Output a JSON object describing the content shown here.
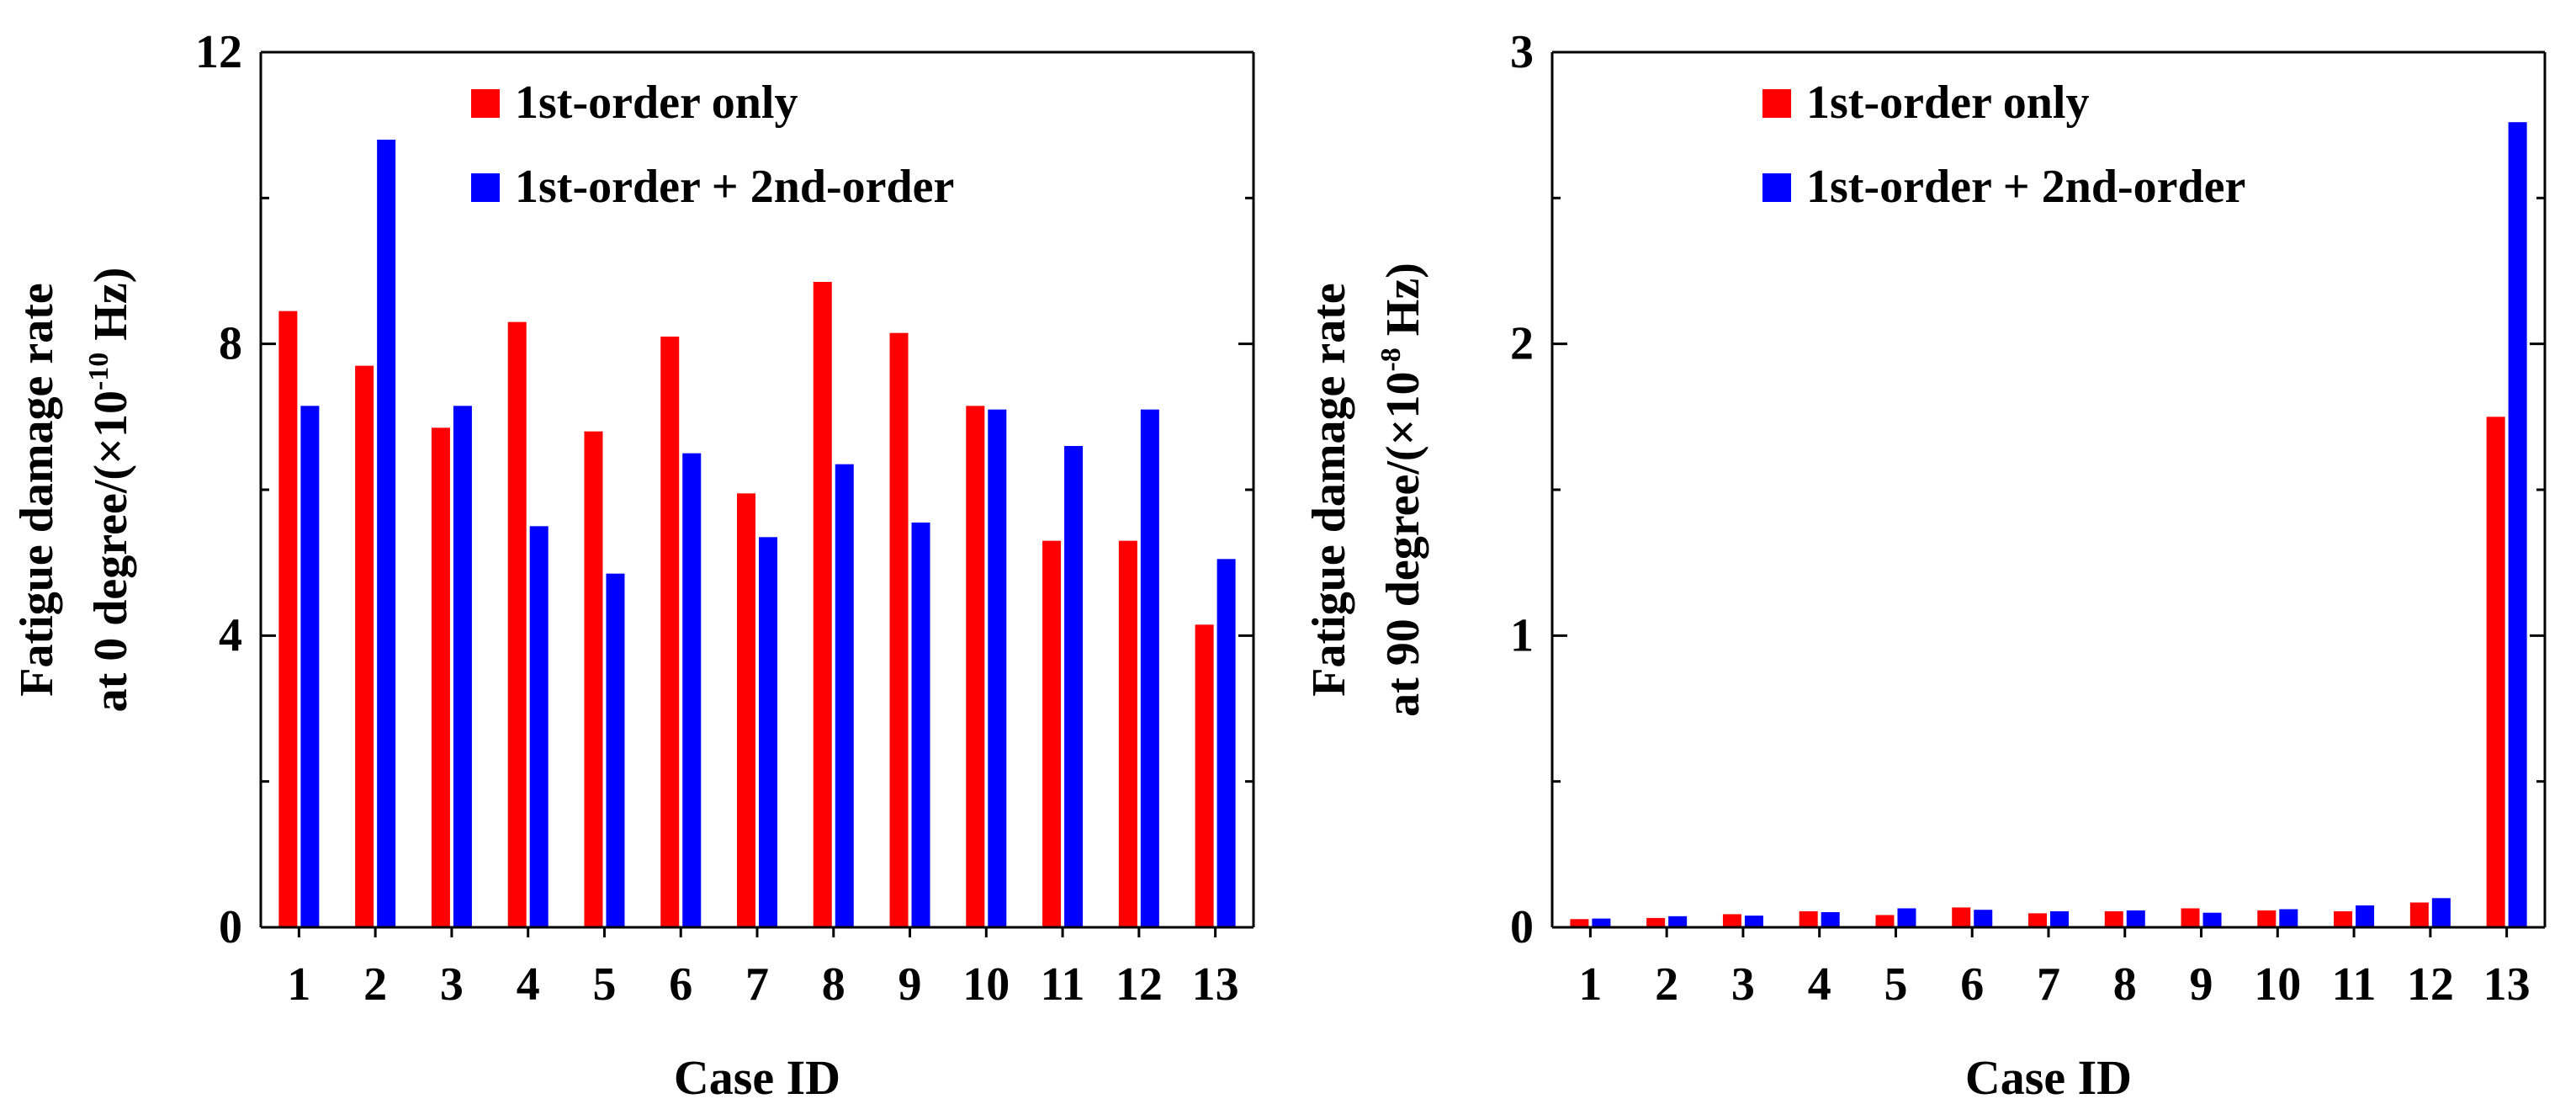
{
  "chart_data": [
    {
      "type": "bar",
      "categories": [
        "1",
        "2",
        "3",
        "4",
        "5",
        "6",
        "7",
        "8",
        "9",
        "10",
        "11",
        "12",
        "13"
      ],
      "xlabel": "Case ID",
      "ylabel_line1": "Fatigue damage rate",
      "ylabel_line2_prefix": "at 0 degree/(×10",
      "ylabel_exponent": "-10",
      "ylabel_line2_suffix": " Hz)",
      "ylim": [
        0,
        12
      ],
      "yticks": [
        "0",
        "4",
        "8",
        "12"
      ],
      "ytick_values": [
        0,
        4,
        8,
        12
      ],
      "legend_position": "top-right",
      "series": [
        {
          "name": "1st-order only",
          "color": "#ff0000",
          "values": [
            8.45,
            7.7,
            6.85,
            8.3,
            6.8,
            8.1,
            5.95,
            8.85,
            8.15,
            7.15,
            5.3,
            5.3,
            4.15
          ]
        },
        {
          "name": "1st-order + 2nd-order",
          "color": "#0000ff",
          "values": [
            7.15,
            10.8,
            7.15,
            5.5,
            4.85,
            6.5,
            5.35,
            6.35,
            5.55,
            7.1,
            6.6,
            7.1,
            5.05
          ]
        }
      ]
    },
    {
      "type": "bar",
      "categories": [
        "1",
        "2",
        "3",
        "4",
        "5",
        "6",
        "7",
        "8",
        "9",
        "10",
        "11",
        "12",
        "13"
      ],
      "xlabel": "Case ID",
      "ylabel_line1": "Fatigue damage rate",
      "ylabel_line2_prefix": "at 90 degree/(×10",
      "ylabel_exponent": "-8",
      "ylabel_line2_suffix": " Hz)",
      "ylim": [
        0,
        3
      ],
      "yticks": [
        "0",
        "1",
        "2",
        "3"
      ],
      "ytick_values": [
        0,
        1,
        2,
        3
      ],
      "legend_position": "top-right",
      "series": [
        {
          "name": "1st-order only",
          "color": "#ff0000",
          "values": [
            0.028,
            0.032,
            0.045,
            0.055,
            0.042,
            0.068,
            0.048,
            0.055,
            0.065,
            0.058,
            0.055,
            0.085,
            1.75
          ]
        },
        {
          "name": "1st-order + 2nd-order",
          "color": "#0000ff",
          "values": [
            0.03,
            0.038,
            0.04,
            0.052,
            0.065,
            0.06,
            0.055,
            0.058,
            0.05,
            0.062,
            0.075,
            0.1,
            2.76
          ]
        }
      ]
    }
  ]
}
